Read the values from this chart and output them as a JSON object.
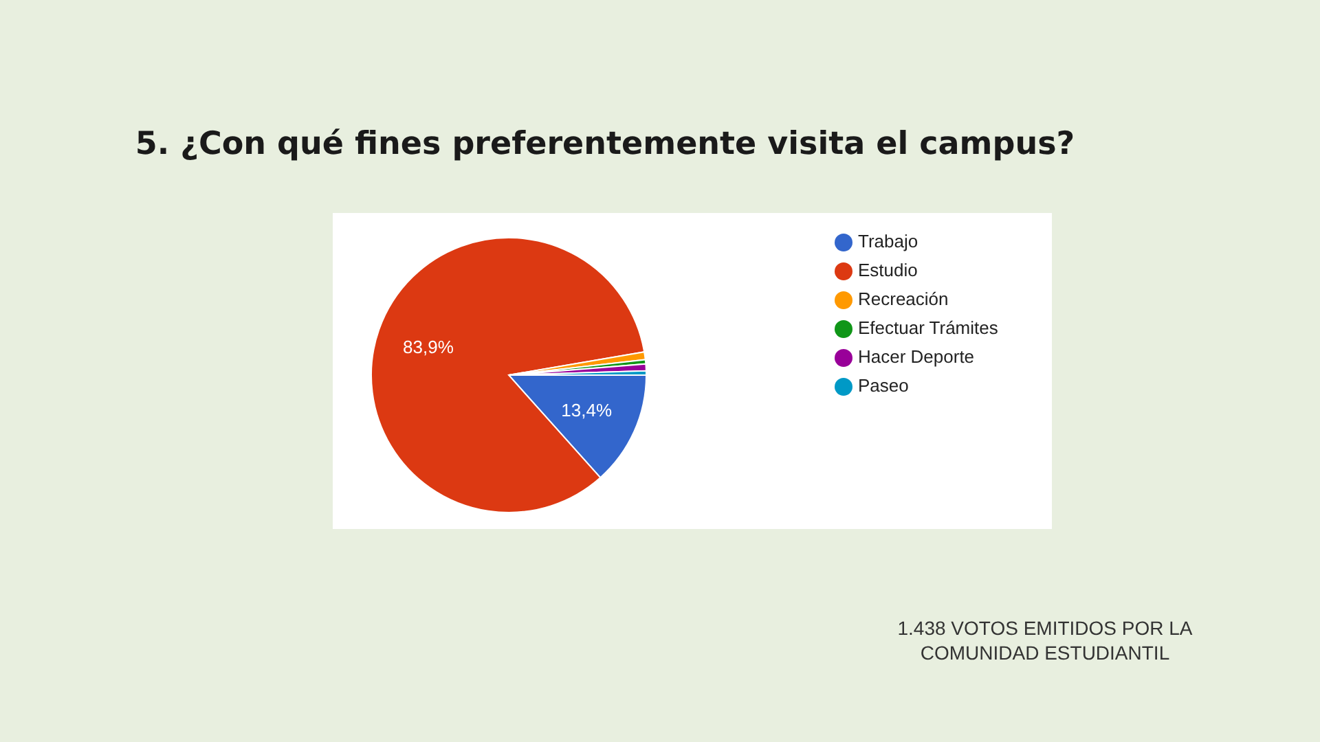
{
  "chart_data": {
    "type": "pie",
    "title": "5. ¿Con qué fines preferentemente visita el campus?",
    "categories": [
      "Trabajo",
      "Estudio",
      "Recreación",
      "Efectuar Trámites",
      "Hacer Deporte",
      "Paseo"
    ],
    "values": [
      13.4,
      83.9,
      0.9,
      0.5,
      0.8,
      0.5
    ],
    "colors": [
      "#3366cc",
      "#dc3912",
      "#ff9900",
      "#109618",
      "#990099",
      "#0099c6"
    ],
    "value_labels": [
      "13,4%",
      "83,9%",
      null,
      null,
      null,
      null
    ],
    "legend": "right",
    "annotations": [
      "1.438 VOTOS EMITIDOS POR LA COMUNIDAD ESTUDIANTIL"
    ]
  }
}
